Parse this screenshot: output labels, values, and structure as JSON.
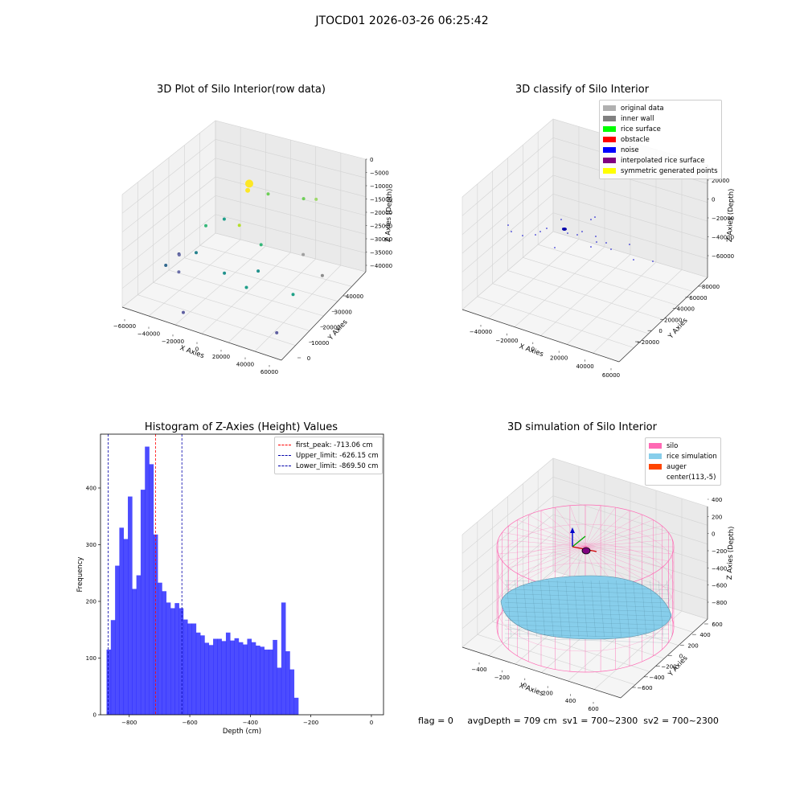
{
  "suptitle": "JTOCD01 2026-03-26 06:25:42",
  "footer": {
    "flag": "flag = 0",
    "avgDepth": "avgDepth = 709 cm",
    "sv1": "sv1 = 700~2300",
    "sv2": "sv2 = 700~2300"
  },
  "chart_data": [
    {
      "type": "scatter",
      "title": "3D Plot of Silo Interior(row data)",
      "xlabel": "X Axies",
      "ylabel": "Y Axies",
      "zlabel": "Z Axies (Depth)",
      "x_ticks": [
        "−60000",
        "−40000",
        "−20000",
        "0",
        "20000",
        "40000",
        "60000"
      ],
      "y_ticks": [
        "0",
        "10000",
        "20000",
        "30000",
        "40000"
      ],
      "z_ticks": [
        "0",
        "−5000",
        "−10000",
        "−15000",
        "−20000",
        "−25000",
        "−30000",
        "−35000",
        "−40000"
      ],
      "xlim": [
        -60000,
        60000
      ],
      "ylim": [
        0,
        45000
      ],
      "zlim": [
        -40000,
        0
      ],
      "points": [
        {
          "x": -25000,
          "y": 40000,
          "z": -14000,
          "color": "#fde725",
          "size": 5
        },
        {
          "x": -23000,
          "y": 38000,
          "z": -15000,
          "color": "#fde725",
          "size": 3
        },
        {
          "x": -17000,
          "y": 30000,
          "z": -22000,
          "color": "#b5de2b",
          "size": 2
        },
        {
          "x": -10000,
          "y": 40000,
          "z": -16000,
          "color": "#6ece58",
          "size": 2
        },
        {
          "x": 15000,
          "y": 42000,
          "z": -16000,
          "color": "#6ece58",
          "size": 2
        },
        {
          "x": 25000,
          "y": 42000,
          "z": -15000,
          "color": "#9ed86a",
          "size": 2
        },
        {
          "x": -40000,
          "y": 28000,
          "z": -24000,
          "color": "#35b779",
          "size": 2
        },
        {
          "x": -32000,
          "y": 32000,
          "z": -23000,
          "color": "#1f9e89",
          "size": 2
        },
        {
          "x": 0,
          "y": 30000,
          "z": -27000,
          "color": "#35b779",
          "size": 2
        },
        {
          "x": -45000,
          "y": 18000,
          "z": -29000,
          "color": "#3e4a89",
          "size": 2
        },
        {
          "x": -48000,
          "y": 20000,
          "z": -31000,
          "color": "#6b6fa8",
          "size": 2
        },
        {
          "x": -38000,
          "y": 22000,
          "z": -30000,
          "color": "#26828e",
          "size": 2
        },
        {
          "x": -52000,
          "y": 16000,
          "z": -33000,
          "color": "#31688e",
          "size": 2
        },
        {
          "x": -42000,
          "y": 16000,
          "z": -34000,
          "color": "#6b6fa8",
          "size": 2
        },
        {
          "x": -10000,
          "y": 18000,
          "z": -31000,
          "color": "#21918c",
          "size": 2
        },
        {
          "x": 10000,
          "y": 22000,
          "z": -30000,
          "color": "#21918c",
          "size": 2
        },
        {
          "x": 10000,
          "y": 16000,
          "z": -32000,
          "color": "#1f9e89",
          "size": 2
        },
        {
          "x": 30000,
          "y": 32000,
          "z": -28000,
          "color": "#a0a0a0",
          "size": 2
        },
        {
          "x": 40000,
          "y": 20000,
          "z": -33000,
          "color": "#1fa187",
          "size": 2
        },
        {
          "x": 48000,
          "y": 30000,
          "z": -32000,
          "color": "#8c8c8c",
          "size": 2
        },
        {
          "x": -20000,
          "y": 4000,
          "z": -38000,
          "color": "#5e5fa0",
          "size": 2
        },
        {
          "x": 45000,
          "y": 8000,
          "z": -38000,
          "color": "#5e5fa0",
          "size": 2
        }
      ]
    },
    {
      "type": "scatter",
      "title": "3D classify of Silo Interior",
      "xlabel": "X Axies",
      "ylabel": "Y Axies",
      "zlabel": "Z Axies (Depth)",
      "x_ticks": [
        "−40000",
        "−20000",
        "0",
        "20000",
        "40000",
        "60000"
      ],
      "y_ticks": [
        "−20000",
        "0",
        "20000",
        "40000",
        "60000",
        "80000"
      ],
      "z_ticks": [
        "20000",
        "0",
        "−20000",
        "−40000",
        "−60000"
      ],
      "legend": [
        {
          "label": "original data",
          "color": "#b0b0b0"
        },
        {
          "label": "inner wall",
          "color": "#808080"
        },
        {
          "label": "rice surface",
          "color": "#00ff00"
        },
        {
          "label": "obstacle",
          "color": "#ff0000"
        },
        {
          "label": "noise",
          "color": "#0000ff"
        },
        {
          "label": "interpolated rice surface",
          "color": "#800080"
        },
        {
          "label": "symmetric generated points",
          "color": "#ffff00"
        }
      ],
      "legend_loc": "upper right",
      "points_color": "#0000cc"
    },
    {
      "type": "bar",
      "title": "Histogram of Z-Axies (Height) Values",
      "xlabel": "Depth (cm)",
      "ylabel": "Frequency",
      "xlim": [
        -895,
        40
      ],
      "ylim": [
        0,
        495
      ],
      "x_ticks": [
        -800,
        -600,
        -400,
        -200,
        0
      ],
      "y_ticks": [
        0,
        100,
        200,
        300,
        400
      ],
      "x_tick_labels": [
        "−800",
        "−600",
        "−400",
        "−200",
        "0"
      ],
      "y_tick_labels": [
        "0",
        "100",
        "200",
        "300",
        "400"
      ],
      "bin_start": -875,
      "bin_width": 14.08,
      "values": [
        115,
        167,
        263,
        330,
        310,
        385,
        222,
        246,
        397,
        473,
        442,
        318,
        233,
        218,
        198,
        188,
        197,
        188,
        168,
        161,
        161,
        145,
        140,
        127,
        123,
        134,
        134,
        130,
        145,
        131,
        135,
        128,
        124,
        134,
        128,
        122,
        120,
        115,
        115,
        132,
        83,
        198,
        112,
        80,
        30
      ],
      "bar_color": "#0000ff",
      "bar_alpha": 0.7,
      "vlines": [
        {
          "x": -713.06,
          "label": "first_peak: -713.06 cm",
          "color": "#ff0000"
        },
        {
          "x": -626.15,
          "label": "Upper_limit: -626.15 cm",
          "color": "#0000aa"
        },
        {
          "x": -869.5,
          "label": "Lower_limit: -869.50 cm",
          "color": "#0000aa"
        }
      ],
      "legend_loc": "upper right"
    },
    {
      "type": "scatter",
      "title": "3D simulation of Silo Interior",
      "xlabel": "X Axies",
      "ylabel": "Y Axies",
      "zlabel": "Z Axies (Depth)",
      "x_ticks": [
        "−400",
        "−200",
        "0",
        "200",
        "400",
        "600"
      ],
      "y_ticks": [
        "−600",
        "−400",
        "−200",
        "0",
        "200",
        "400",
        "600"
      ],
      "z_ticks": [
        "400",
        "200",
        "0",
        "−200",
        "−400",
        "−600",
        "−800"
      ],
      "legend": [
        {
          "label": "silo",
          "color": "#ff69b4"
        },
        {
          "label": "rice simulation",
          "color": "#87ceeb"
        },
        {
          "label": "auger",
          "color": "#ff4500"
        },
        {
          "label": "center(113,-5)",
          "color": ""
        }
      ],
      "legend_loc": "upper right"
    }
  ]
}
